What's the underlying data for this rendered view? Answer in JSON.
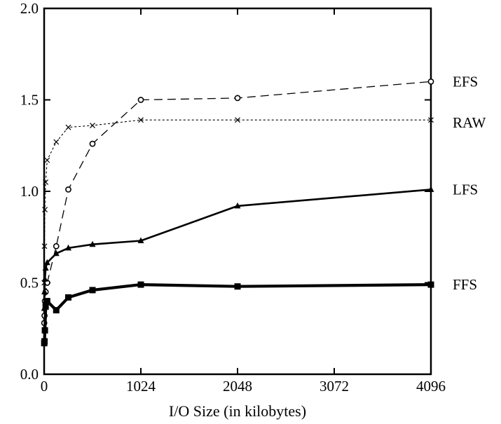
{
  "chart_data": {
    "type": "line",
    "title": "",
    "xlabel": "I/O Size (in kilobytes)",
    "ylabel": "",
    "xlim": [
      0,
      4096
    ],
    "ylim": [
      0,
      2.0
    ],
    "x_ticks": [
      0,
      1024,
      2048,
      3072,
      4096
    ],
    "x_tick_labels": [
      "0",
      "1024",
      "2048",
      "3072",
      "4096"
    ],
    "y_ticks": [
      0.0,
      0.5,
      1.0,
      1.5,
      2.0
    ],
    "y_tick_labels": [
      "0.0",
      "0.5",
      "1.0",
      "1.5",
      "2.0"
    ],
    "grid": false,
    "legend": "labels at right end of each line",
    "series": [
      {
        "name": "EFS",
        "marker": "circle",
        "line_style": "long-dash",
        "x": [
          1,
          4,
          8,
          16,
          32,
          128,
          256,
          512,
          1024,
          2048,
          4096
        ],
        "y": [
          0.28,
          0.32,
          0.4,
          0.45,
          0.5,
          0.7,
          1.01,
          1.26,
          1.5,
          1.51,
          1.6
        ]
      },
      {
        "name": "RAW",
        "marker": "x",
        "line_style": "dotted",
        "x": [
          1,
          4,
          8,
          16,
          32,
          128,
          256,
          512,
          1024,
          2048,
          4096
        ],
        "y": [
          0.5,
          0.7,
          0.9,
          1.05,
          1.17,
          1.27,
          1.35,
          1.36,
          1.39,
          1.39,
          1.39
        ]
      },
      {
        "name": "LFS",
        "marker": "triangle",
        "line_style": "solid",
        "x": [
          1,
          4,
          8,
          16,
          32,
          128,
          256,
          512,
          1024,
          2048,
          4096
        ],
        "y": [
          0.36,
          0.45,
          0.52,
          0.58,
          0.61,
          0.66,
          0.69,
          0.71,
          0.73,
          0.92,
          1.01
        ]
      },
      {
        "name": "FFS",
        "marker": "square",
        "line_style": "thick-solid",
        "x": [
          1,
          4,
          8,
          16,
          32,
          128,
          256,
          512,
          1024,
          2048,
          4096
        ],
        "y": [
          0.17,
          0.18,
          0.24,
          0.37,
          0.4,
          0.35,
          0.42,
          0.46,
          0.49,
          0.48,
          0.49
        ]
      }
    ]
  }
}
